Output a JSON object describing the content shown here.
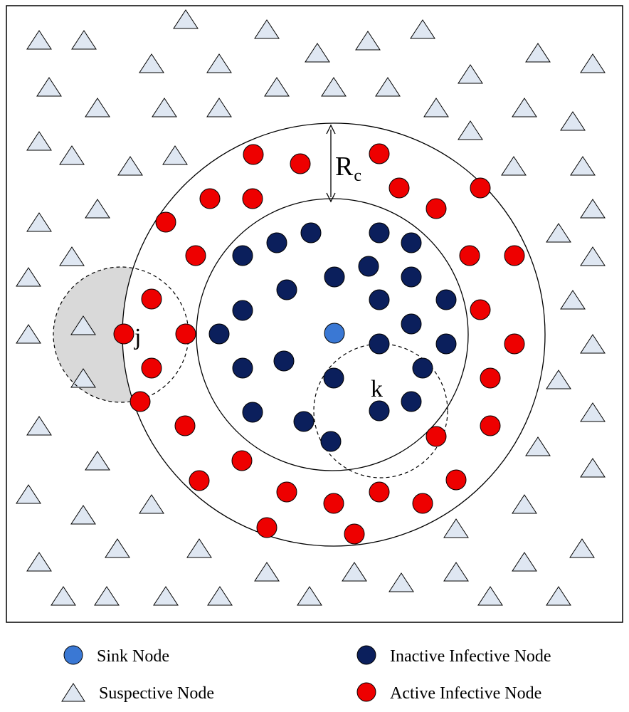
{
  "labels": {
    "rc_main": "R",
    "rc_sub": "c",
    "j": "j",
    "k": "k"
  },
  "legend": {
    "sink": "Sink Node",
    "suspective": "Suspective Node",
    "inactive": "Inactive Infective Node",
    "active": "Active Infective Node"
  },
  "colors": {
    "sink": "#3a78d4",
    "inactive": "#0b1f5c",
    "active": "#ee0000",
    "suspective_fill": "#dfe7f2",
    "shade": "#d9d9d9"
  }
}
